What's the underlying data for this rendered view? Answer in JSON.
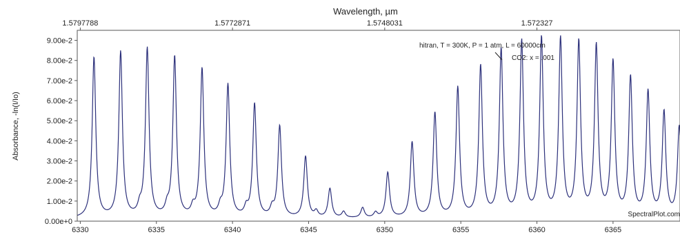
{
  "chart_data": {
    "type": "line",
    "title": "",
    "x_top_label": "Wavelength, µm",
    "x_top_ticks": [
      {
        "x": 6330.0,
        "label": "1.5797788"
      },
      {
        "x": 6340.0,
        "label": "1.5772871"
      },
      {
        "x": 6350.0,
        "label": "1.5748031"
      },
      {
        "x": 6360.0,
        "label": "1.572327"
      }
    ],
    "xlabel": "",
    "ylabel": "Absorbance, -ln(I/Io)",
    "xlim": [
      6329.8,
      6369.4
    ],
    "ylim": [
      0,
      0.095
    ],
    "x_ticks": [
      6330,
      6335,
      6340,
      6345,
      6350,
      6355,
      6360,
      6365
    ],
    "y_ticks": [
      {
        "value": 0.0,
        "label": "0.00e+0"
      },
      {
        "value": 0.01,
        "label": "1.00e-2"
      },
      {
        "value": 0.02,
        "label": "2.00e-2"
      },
      {
        "value": 0.03,
        "label": "3.00e-2"
      },
      {
        "value": 0.04,
        "label": "4.00e-2"
      },
      {
        "value": 0.05,
        "label": "5.00e-2"
      },
      {
        "value": 0.06,
        "label": "6.00e-2"
      },
      {
        "value": 0.07,
        "label": "7.00e-2"
      },
      {
        "value": 0.08,
        "label": "8.00e-2"
      },
      {
        "value": 0.09,
        "label": "9.00e-2"
      }
    ],
    "annotation_conditions": "hitran, T = 300K, P = 1 atm, L = 60000cm",
    "annotation_series": "CO2: x = .001",
    "watermark": "SpectralPlot.com",
    "line_color": "#2b2f7a",
    "baseline": 0.003,
    "peaks": [
      {
        "x": 6330.9,
        "y": 0.08
      },
      {
        "x": 6332.65,
        "y": 0.0825
      },
      {
        "x": 6334.4,
        "y": 0.084
      },
      {
        "x": 6336.2,
        "y": 0.08
      },
      {
        "x": 6338.0,
        "y": 0.074
      },
      {
        "x": 6339.7,
        "y": 0.066
      },
      {
        "x": 6341.45,
        "y": 0.0565
      },
      {
        "x": 6343.1,
        "y": 0.0455
      },
      {
        "x": 6344.8,
        "y": 0.0305
      },
      {
        "x": 6346.4,
        "y": 0.0145
      },
      {
        "x": 6348.55,
        "y": 0.005
      },
      {
        "x": 6350.2,
        "y": 0.0225
      },
      {
        "x": 6351.8,
        "y": 0.0375
      },
      {
        "x": 6353.3,
        "y": 0.052
      },
      {
        "x": 6354.8,
        "y": 0.0645
      },
      {
        "x": 6356.3,
        "y": 0.075
      },
      {
        "x": 6357.65,
        "y": 0.083
      },
      {
        "x": 6359.0,
        "y": 0.087
      },
      {
        "x": 6360.3,
        "y": 0.0885
      },
      {
        "x": 6361.55,
        "y": 0.088
      },
      {
        "x": 6362.75,
        "y": 0.0865
      },
      {
        "x": 6363.9,
        "y": 0.0845
      },
      {
        "x": 6365.0,
        "y": 0.0765
      },
      {
        "x": 6366.15,
        "y": 0.069
      },
      {
        "x": 6367.3,
        "y": 0.062
      },
      {
        "x": 6368.35,
        "y": 0.052
      },
      {
        "x": 6369.35,
        "y": 0.045
      }
    ],
    "small_peaks": [
      {
        "x": 6333.9,
        "y": 0.004
      },
      {
        "x": 6335.7,
        "y": 0.004
      },
      {
        "x": 6337.4,
        "y": 0.004
      },
      {
        "x": 6339.2,
        "y": 0.004
      },
      {
        "x": 6340.9,
        "y": 0.004
      },
      {
        "x": 6342.6,
        "y": 0.004
      },
      {
        "x": 6345.5,
        "y": 0.003
      },
      {
        "x": 6347.3,
        "y": 0.003
      },
      {
        "x": 6349.4,
        "y": 0.0025
      }
    ]
  }
}
